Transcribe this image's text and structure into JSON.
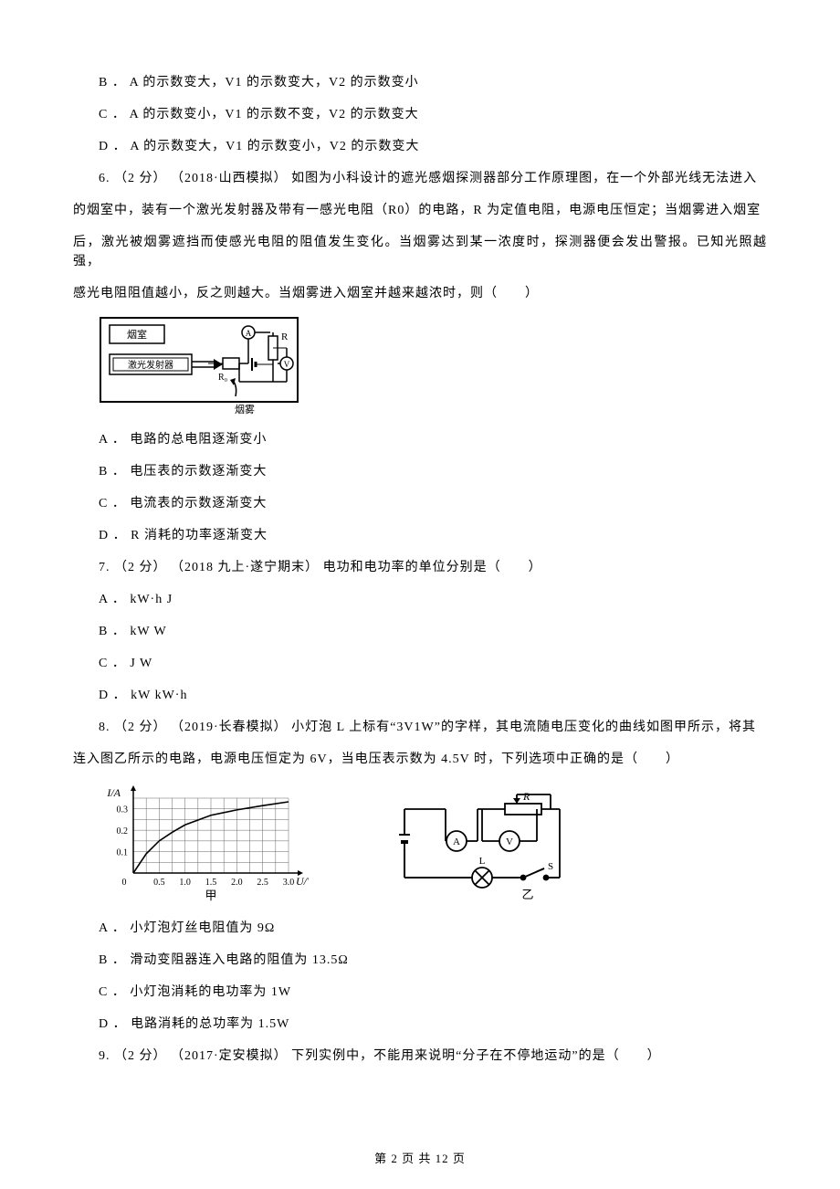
{
  "q5_continued": {
    "options": [
      "B ． A 的示数变大，V1 的示数变大，V2 的示数变小",
      "C ． A 的示数变小，V1 的示数不变，V2 的示数变大",
      "D ． A 的示数变大，V1 的示数变小，V2 的示数变大"
    ]
  },
  "q6": {
    "stem_line1": "6.  （2 分） （2018·山西模拟） 如图为小科设计的遮光感烟探测器部分工作原理图，在一个外部光线无法进入",
    "stem_line2": "的烟室中，装有一个激光发射器及带有一感光电阻（R0）的电路，R 为定值电阻，电源电压恒定；当烟雾进入烟室",
    "stem_line3": "后，激光被烟雾遮挡而使感光电阻的阻值发生变化。当烟雾达到某一浓度时，探测器便会发出警报。已知光照越强，",
    "stem_line4": "感光电阻阻值越小，反之则越大。当烟雾进入烟室并越来越浓时，则（　　）",
    "options": [
      "A ． 电路的总电阻逐渐变小",
      "B ． 电压表的示数逐渐变大",
      "C ． 电流表的示数逐渐变大",
      "D ． R 消耗的功率逐渐变大"
    ],
    "diagram": {
      "labels": {
        "room": "烟室",
        "laser": "激光发射器",
        "smoke": "烟雾",
        "R": "R",
        "R0": "R₀",
        "A": "A",
        "V": "V"
      },
      "colors": {
        "stroke": "#000000",
        "bg": "#ffffff"
      }
    }
  },
  "q7": {
    "stem": "7.  （2 分） （2018 九上·遂宁期末） 电功和电功率的单位分别是（　　）",
    "options": [
      "A ． kW·h   J",
      "B ． kW   W",
      "C ． J    W",
      "D ． kW    kW·h"
    ]
  },
  "q8": {
    "stem_line1": "8.  （2 分） （2019·长春模拟） 小灯泡 L 上标有“3V1W”的字样，其电流随电压变化的曲线如图甲所示，将其",
    "stem_line2": "连入图乙所示的电路，电源电压恒定为 6V，当电压表示数为 4.5V 时，下列选项中正确的是（　　）",
    "options": [
      "A ． 小灯泡灯丝电阻值为 9Ω",
      "B ． 滑动变阻器连入电路的阻值为 13.5Ω",
      "C ． 小灯泡消耗的电功率为 1W",
      "D ． 电路消耗的总功率为 1.5W"
    ],
    "chart": {
      "type": "line",
      "xlabel": "U/V",
      "ylabel": "I/A",
      "caption": "甲",
      "xlim": [
        0,
        3.0
      ],
      "ylim": [
        0,
        0.35
      ],
      "xticks": [
        0.5,
        1.0,
        1.5,
        2.0,
        2.5,
        3.0
      ],
      "yticks": [
        0.1,
        0.2,
        0.3
      ],
      "ytick_labels": [
        "0.1",
        "0.2",
        "0.3"
      ],
      "curve": [
        [
          0,
          0
        ],
        [
          0.25,
          0.09
        ],
        [
          0.5,
          0.15
        ],
        [
          0.75,
          0.19
        ],
        [
          1.0,
          0.225
        ],
        [
          1.5,
          0.27
        ],
        [
          2.0,
          0.295
        ],
        [
          2.5,
          0.315
        ],
        [
          3.0,
          0.333
        ]
      ],
      "colors": {
        "grid": "#666666",
        "axis": "#000000",
        "curve": "#000000",
        "bg": "#ffffff"
      },
      "line_width": 1.6
    },
    "circuit": {
      "caption": "乙",
      "labels": {
        "R": "R",
        "A": "A",
        "V": "V",
        "L": "L",
        "S": "S"
      },
      "colors": {
        "stroke": "#000000"
      }
    }
  },
  "q9": {
    "stem": "9.  （2 分） （2017·定安模拟） 下列实例中，不能用来说明“分子在不停地运动”的是（　　）"
  },
  "footer": "第 2 页 共 12 页"
}
